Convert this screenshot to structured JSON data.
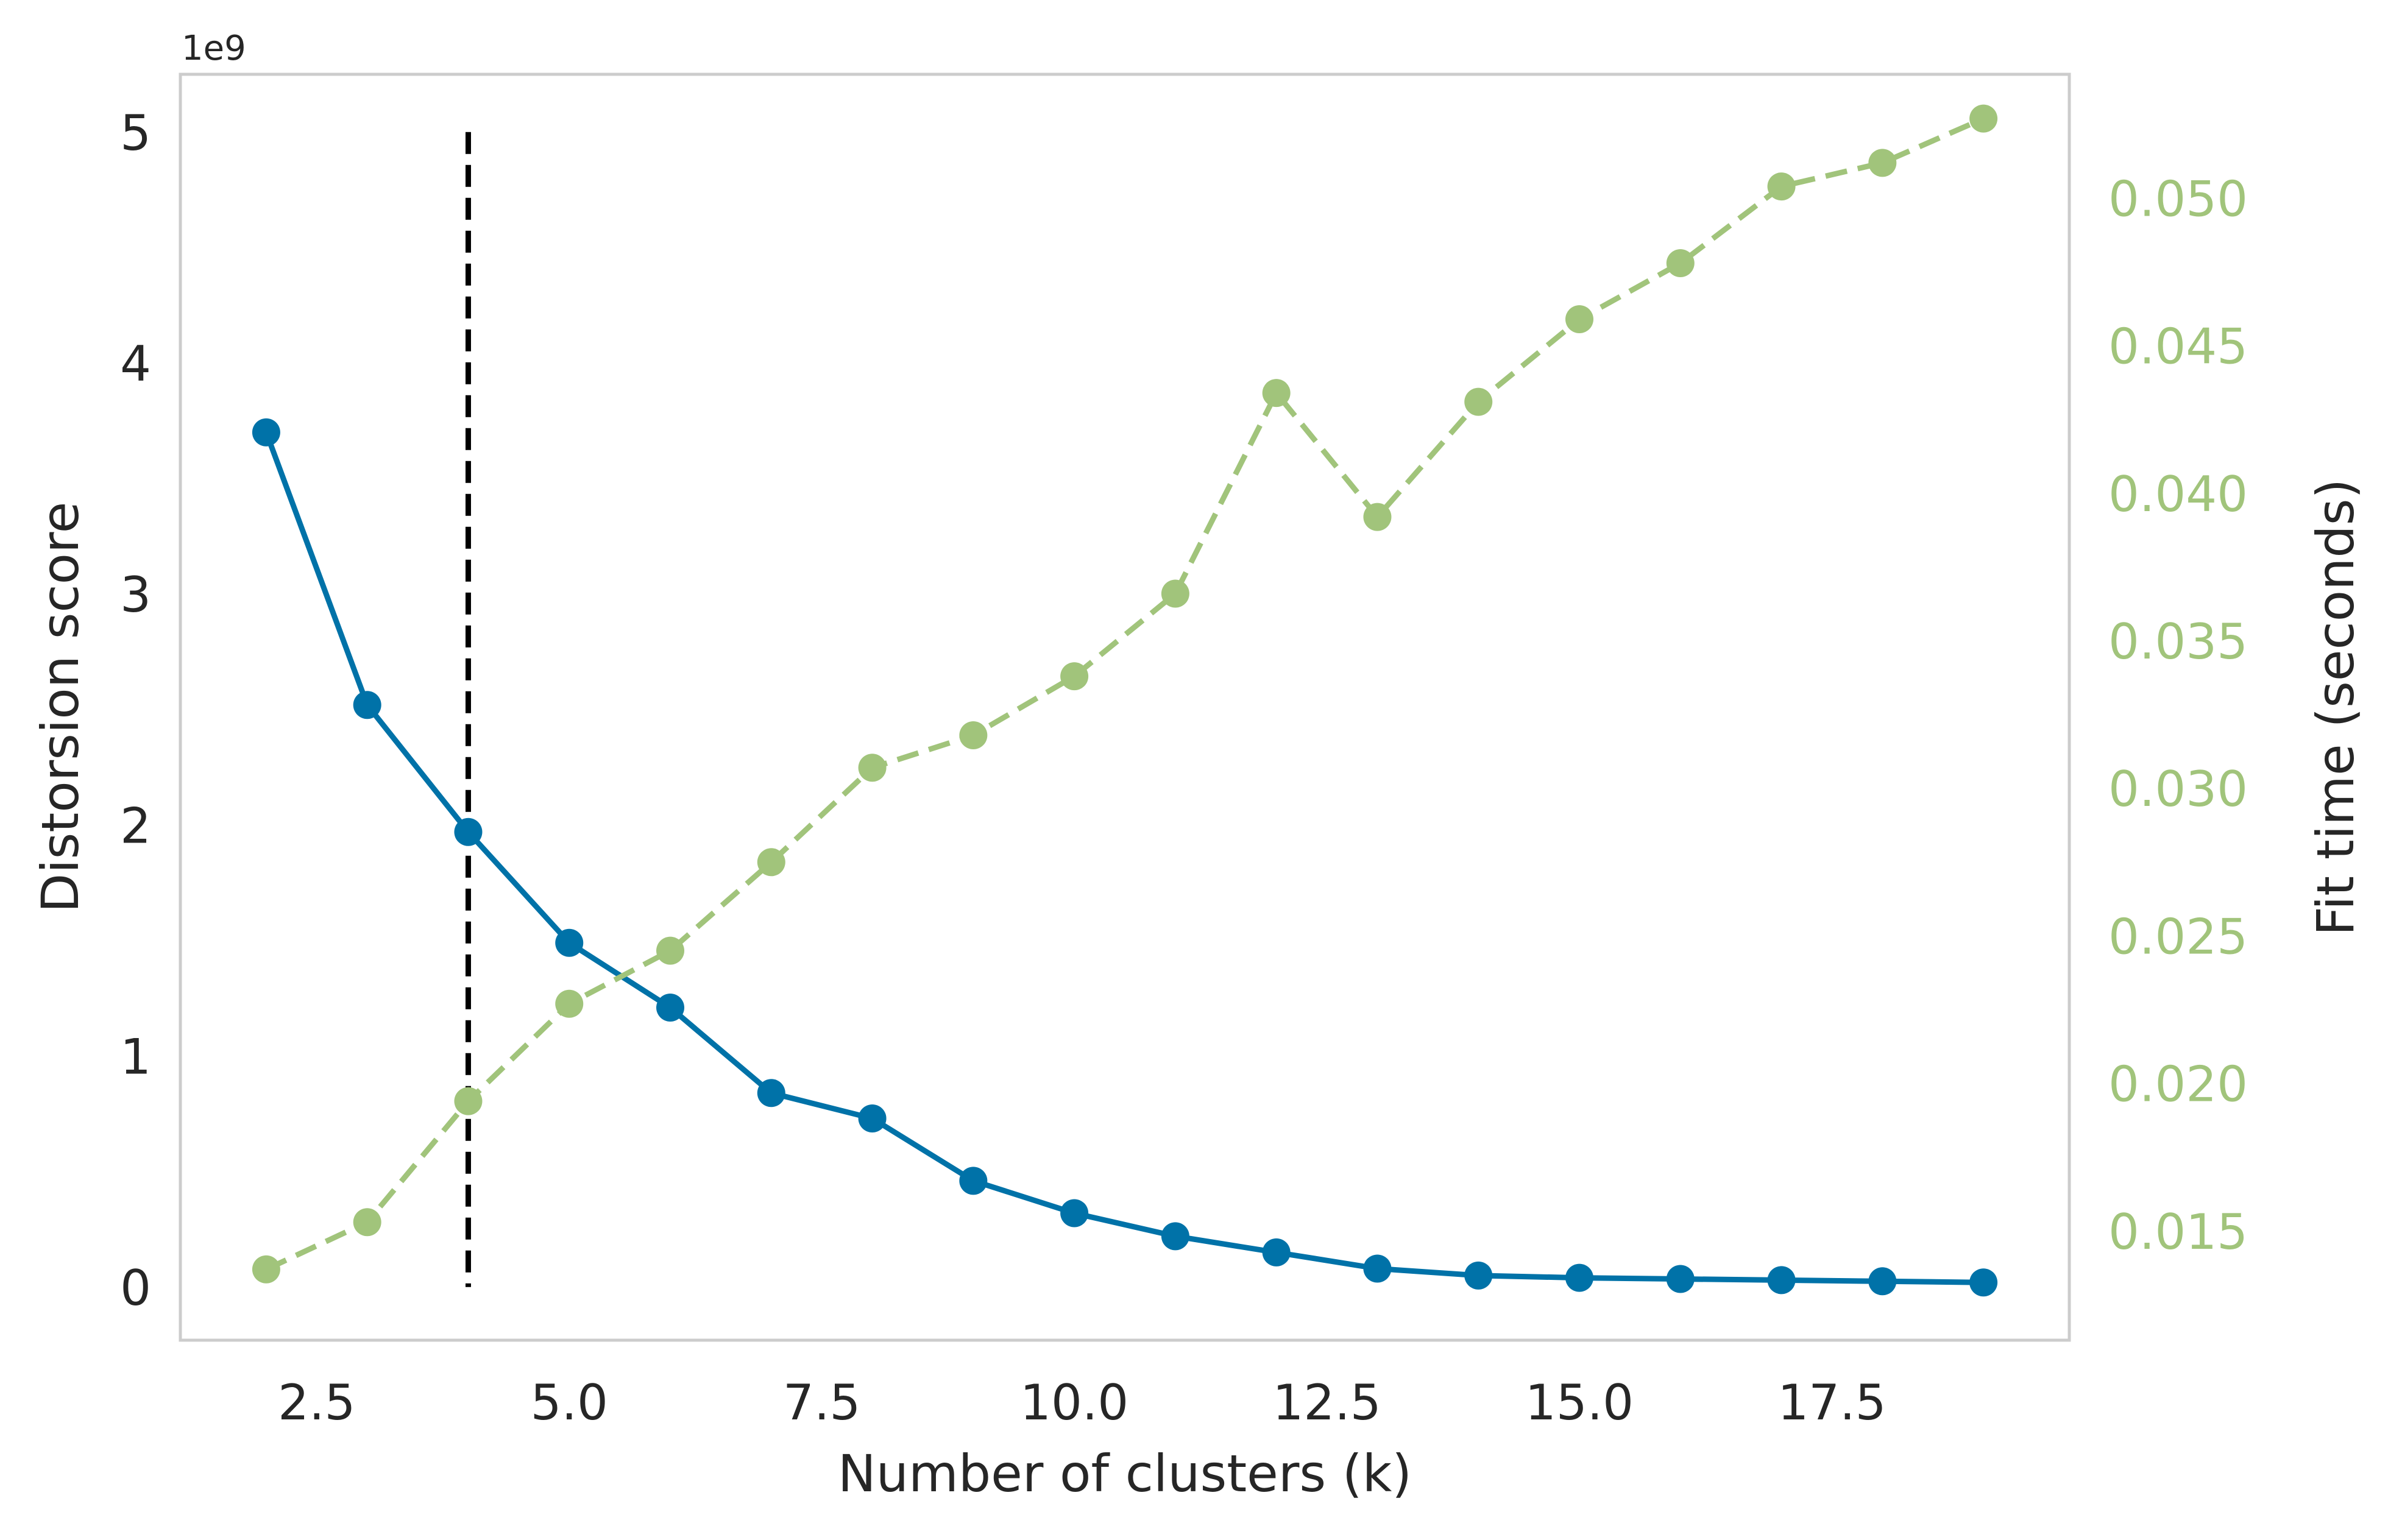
{
  "chart_data": {
    "type": "line",
    "xlabel": "Number of clusters (k)",
    "ylabel": "Distorsion score",
    "ylabel_right": "Fit time (seconds)",
    "y_offset_text": "1e9",
    "x": [
      2,
      3,
      4,
      5,
      6,
      7,
      8,
      9,
      10,
      11,
      12,
      13,
      14,
      15,
      16,
      17,
      18,
      19
    ],
    "xlim": [
      1.15,
      19.85
    ],
    "ylim": [
      -0.23,
      5.25
    ],
    "ylim_right": [
      0.0113,
      0.0542
    ],
    "x_ticks": [
      2.5,
      5.0,
      7.5,
      10.0,
      12.5,
      15.0,
      17.5
    ],
    "x_tick_labels": [
      "2.5",
      "5.0",
      "7.5",
      "10.0",
      "12.5",
      "15.0",
      "17.5"
    ],
    "y_ticks": [
      0,
      1,
      2,
      3,
      4,
      5
    ],
    "y_tick_labels": [
      "0",
      "1",
      "2",
      "3",
      "4",
      "5"
    ],
    "y_right_ticks": [
      0.015,
      0.02,
      0.025,
      0.03,
      0.035,
      0.04,
      0.045,
      0.05
    ],
    "y_right_tick_labels": [
      "0.015",
      "0.020",
      "0.025",
      "0.030",
      "0.035",
      "0.040",
      "0.045",
      "0.050"
    ],
    "series": [
      {
        "axis": "left",
        "style": "solid",
        "color": "#0072A8",
        "values": [
          3.7,
          2.52,
          1.97,
          1.49,
          1.21,
          0.84,
          0.73,
          0.46,
          0.32,
          0.22,
          0.15,
          0.08,
          0.05,
          0.04,
          0.035,
          0.03,
          0.025,
          0.02
        ]
      },
      {
        "axis": "right",
        "style": "dashed",
        "color": "#A1C47B",
        "values": [
          0.0137,
          0.0153,
          0.0194,
          0.0227,
          0.0245,
          0.0275,
          0.0307,
          0.0318,
          0.0338,
          0.0366,
          0.0434,
          0.0392,
          0.0431,
          0.0459,
          0.0478,
          0.0504,
          0.0512,
          0.0527
        ]
      }
    ],
    "elbow_x": 4,
    "elbow_color": "#000000",
    "grid": false,
    "legend": "none"
  }
}
